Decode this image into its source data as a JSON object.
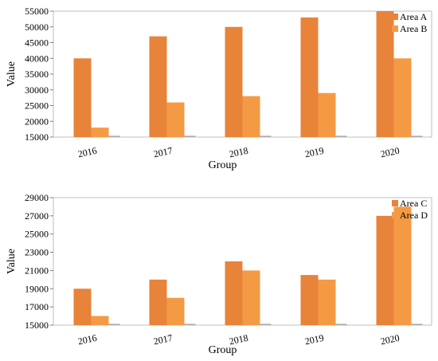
{
  "chart_data": [
    {
      "type": "bar",
      "categories": [
        "2016",
        "2017",
        "2018",
        "2019",
        "2020"
      ],
      "series": [
        {
          "name": "Area A",
          "values": [
            40000,
            47000,
            50000,
            53000,
            55000
          ],
          "color": "#E8833A"
        },
        {
          "name": "Area B",
          "values": [
            18000,
            26000,
            28000,
            29000,
            40000
          ],
          "color": "#F49A45"
        }
      ],
      "xlabel": "Group",
      "ylabel": "Value",
      "ylim": [
        15000,
        55000
      ],
      "yticks": [
        15000,
        20000,
        25000,
        30000,
        35000,
        40000,
        45000,
        50000,
        55000
      ],
      "legend": "top-right",
      "grid": false
    },
    {
      "type": "bar",
      "categories": [
        "2016",
        "2017",
        "2018",
        "2019",
        "2020"
      ],
      "series": [
        {
          "name": "Area C",
          "values": [
            19000,
            20000,
            22000,
            20500,
            27000
          ],
          "color": "#E8833A"
        },
        {
          "name": "Area D",
          "values": [
            16000,
            18000,
            21000,
            20000,
            28000
          ],
          "color": "#F49A45"
        }
      ],
      "xlabel": "Group",
      "ylabel": "Value",
      "ylim": [
        15000,
        29000
      ],
      "yticks": [
        15000,
        17000,
        19000,
        21000,
        23000,
        25000,
        27000,
        29000
      ],
      "legend": "top-right",
      "grid": false
    }
  ]
}
